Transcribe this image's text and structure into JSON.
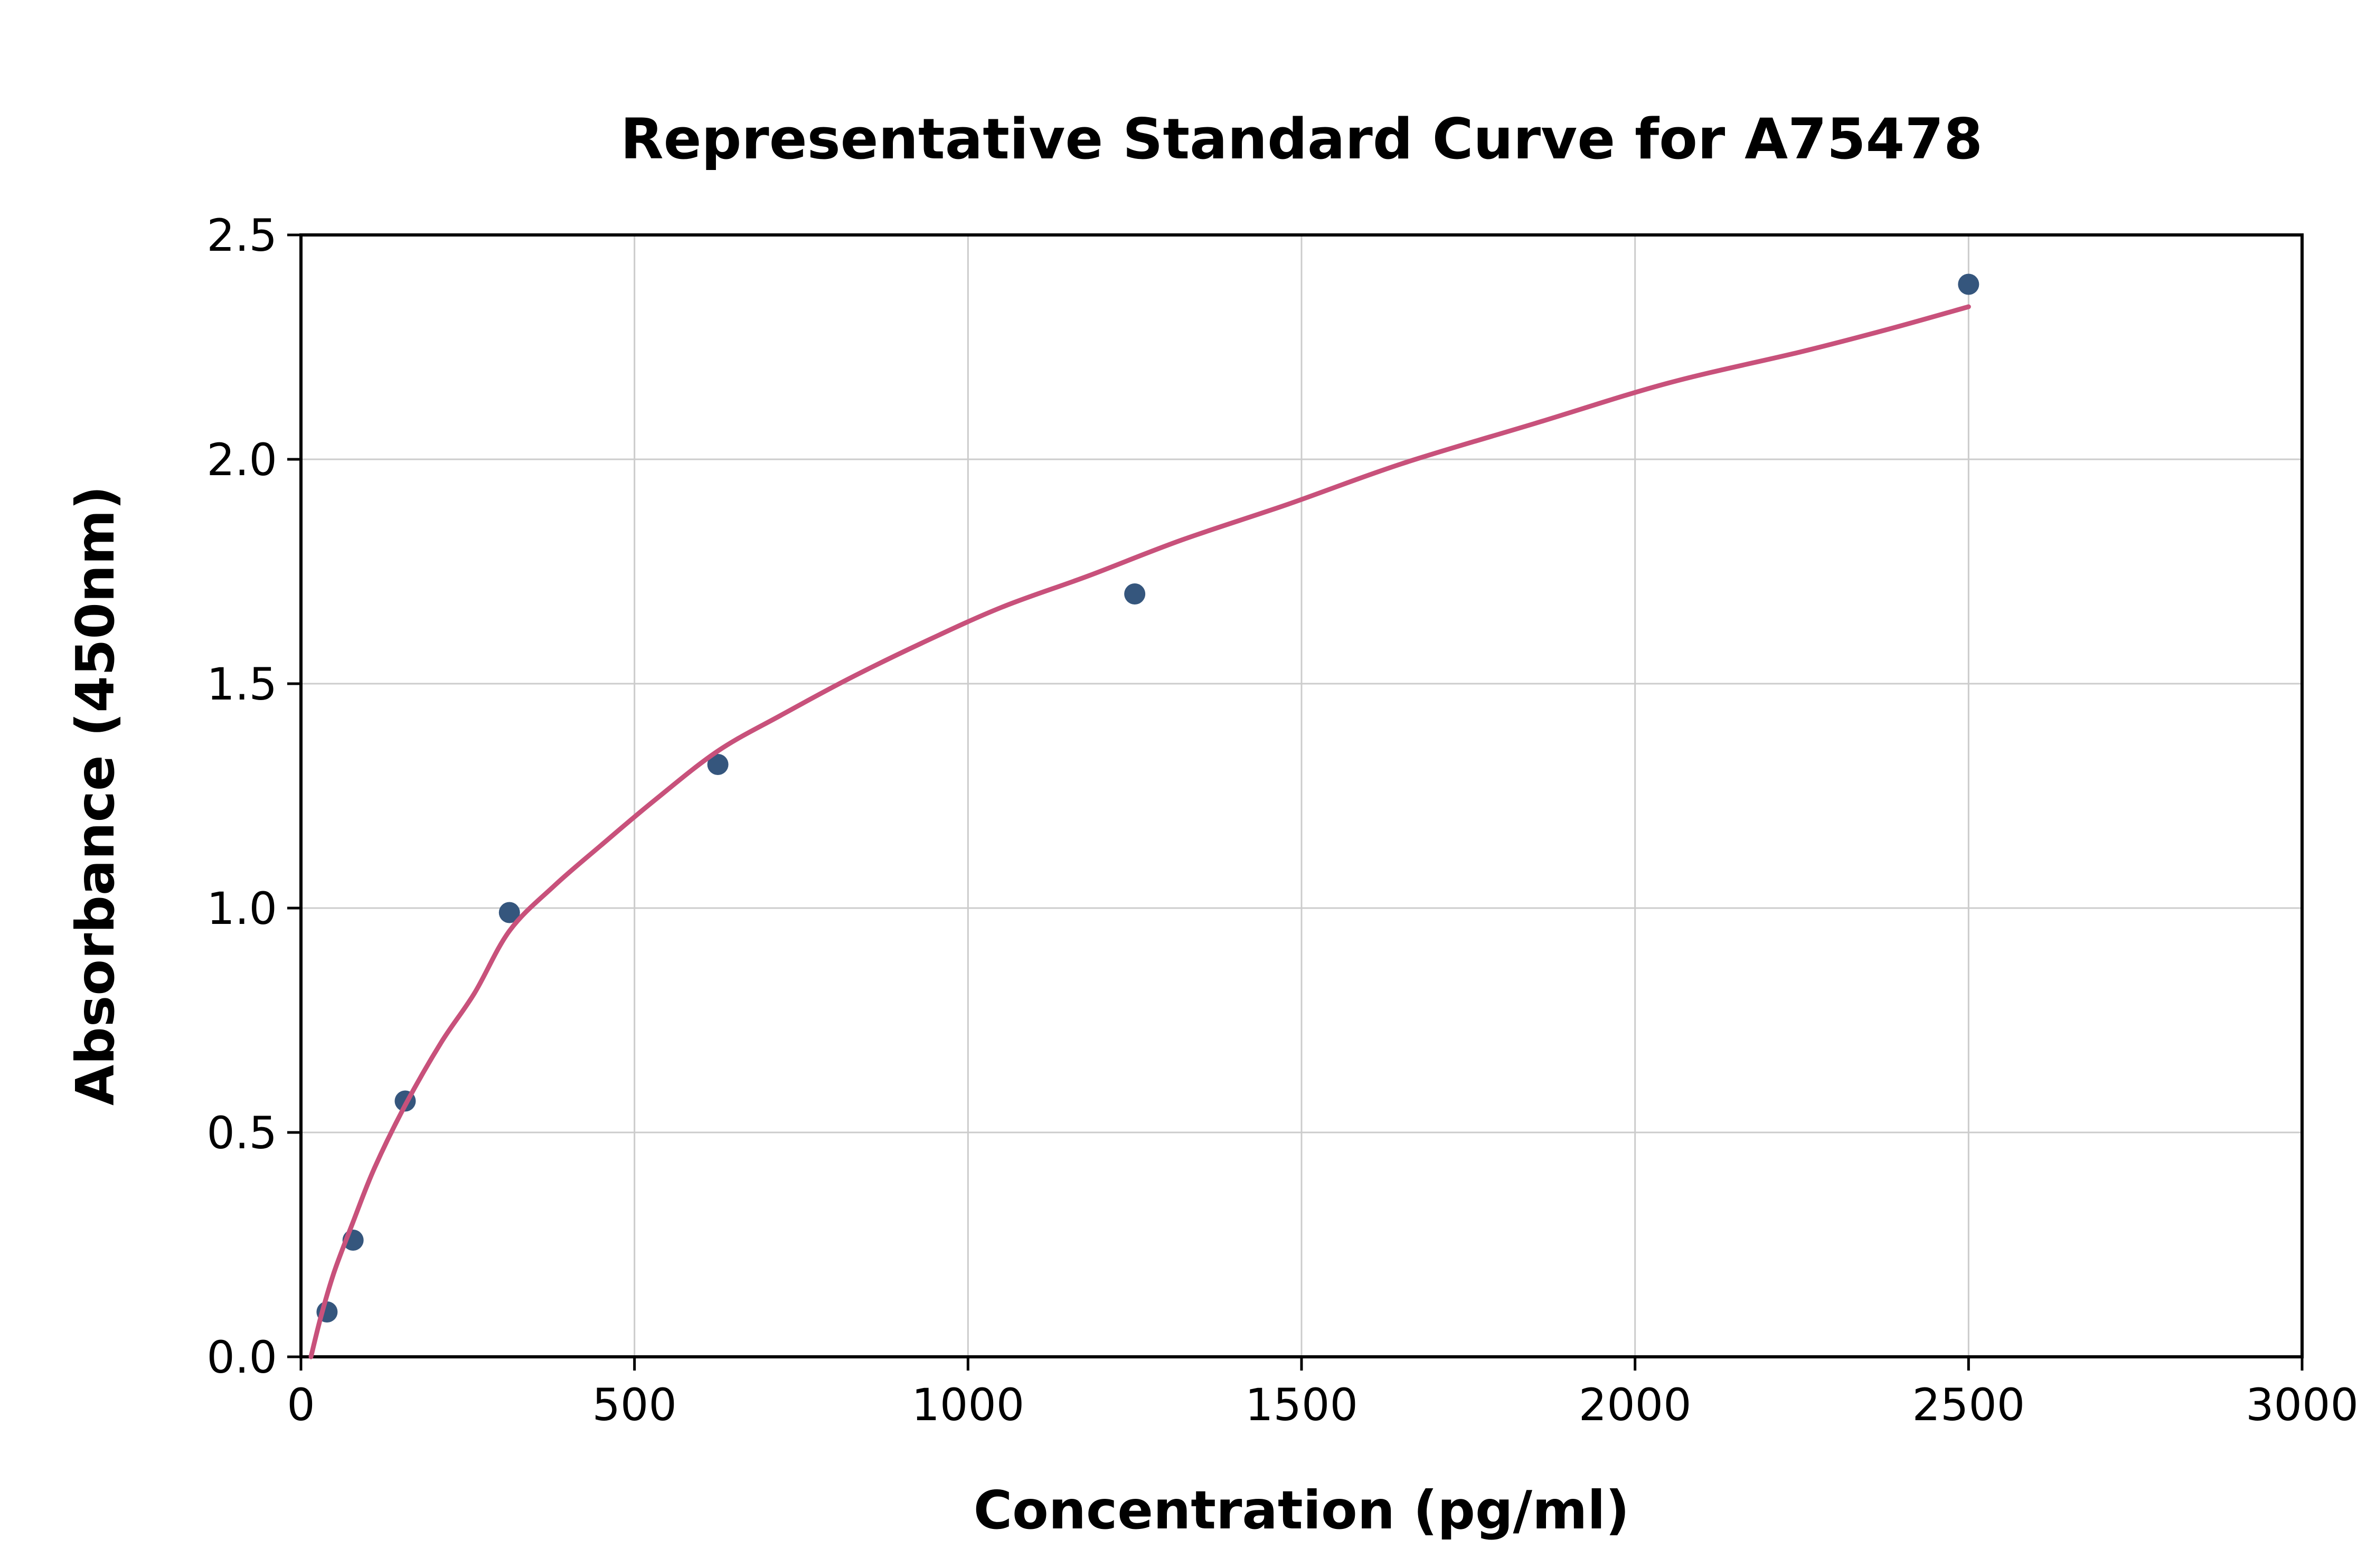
{
  "chart_data": {
    "type": "scatter",
    "title": "Representative Standard Curve for A75478",
    "xlabel": "Concentration (pg/ml)",
    "ylabel": "Absorbance (450nm)",
    "xlim": [
      0,
      3000
    ],
    "ylim": [
      0,
      2.5
    ],
    "xticks": [
      0,
      500,
      1000,
      1500,
      2000,
      2500,
      3000
    ],
    "xtick_labels": [
      "0",
      "500",
      "1000",
      "1500",
      "2000",
      "2500",
      "3000"
    ],
    "yticks": [
      0,
      0.5,
      1.0,
      1.5,
      2.0,
      2.5
    ],
    "ytick_labels": [
      "0.0",
      "0.5",
      "1.0",
      "1.5",
      "2.0",
      "2.5"
    ],
    "grid": true,
    "legend_position": "none",
    "colors": {
      "background": "#ffffff",
      "grid": "#cccccc",
      "spine": "#000000",
      "text": "#000000",
      "marker": "#35567d",
      "curve": "#c8517b"
    },
    "series": [
      {
        "name": "standard-points",
        "type": "scatter",
        "color": "#35567d",
        "points": [
          [
            39.1,
            0.1
          ],
          [
            78.1,
            0.26
          ],
          [
            156.3,
            0.57
          ],
          [
            312.5,
            0.99
          ],
          [
            625,
            1.32
          ],
          [
            1250,
            1.7
          ],
          [
            2500,
            2.39
          ]
        ]
      },
      {
        "name": "fitted-curve",
        "type": "line",
        "color": "#c8517b",
        "points": [
          [
            15,
            0.0
          ],
          [
            30,
            0.09
          ],
          [
            50,
            0.19
          ],
          [
            78,
            0.3
          ],
          [
            110,
            0.42
          ],
          [
            156,
            0.56
          ],
          [
            210,
            0.7
          ],
          [
            260,
            0.81
          ],
          [
            313,
            0.95
          ],
          [
            380,
            1.05
          ],
          [
            450,
            1.14
          ],
          [
            530,
            1.24
          ],
          [
            625,
            1.35
          ],
          [
            720,
            1.43
          ],
          [
            820,
            1.51
          ],
          [
            930,
            1.59
          ],
          [
            1050,
            1.67
          ],
          [
            1180,
            1.74
          ],
          [
            1320,
            1.82
          ],
          [
            1480,
            1.9
          ],
          [
            1650,
            1.99
          ],
          [
            1850,
            2.08
          ],
          [
            2050,
            2.17
          ],
          [
            2250,
            2.24
          ],
          [
            2380,
            2.29
          ],
          [
            2500,
            2.34
          ]
        ]
      }
    ]
  }
}
